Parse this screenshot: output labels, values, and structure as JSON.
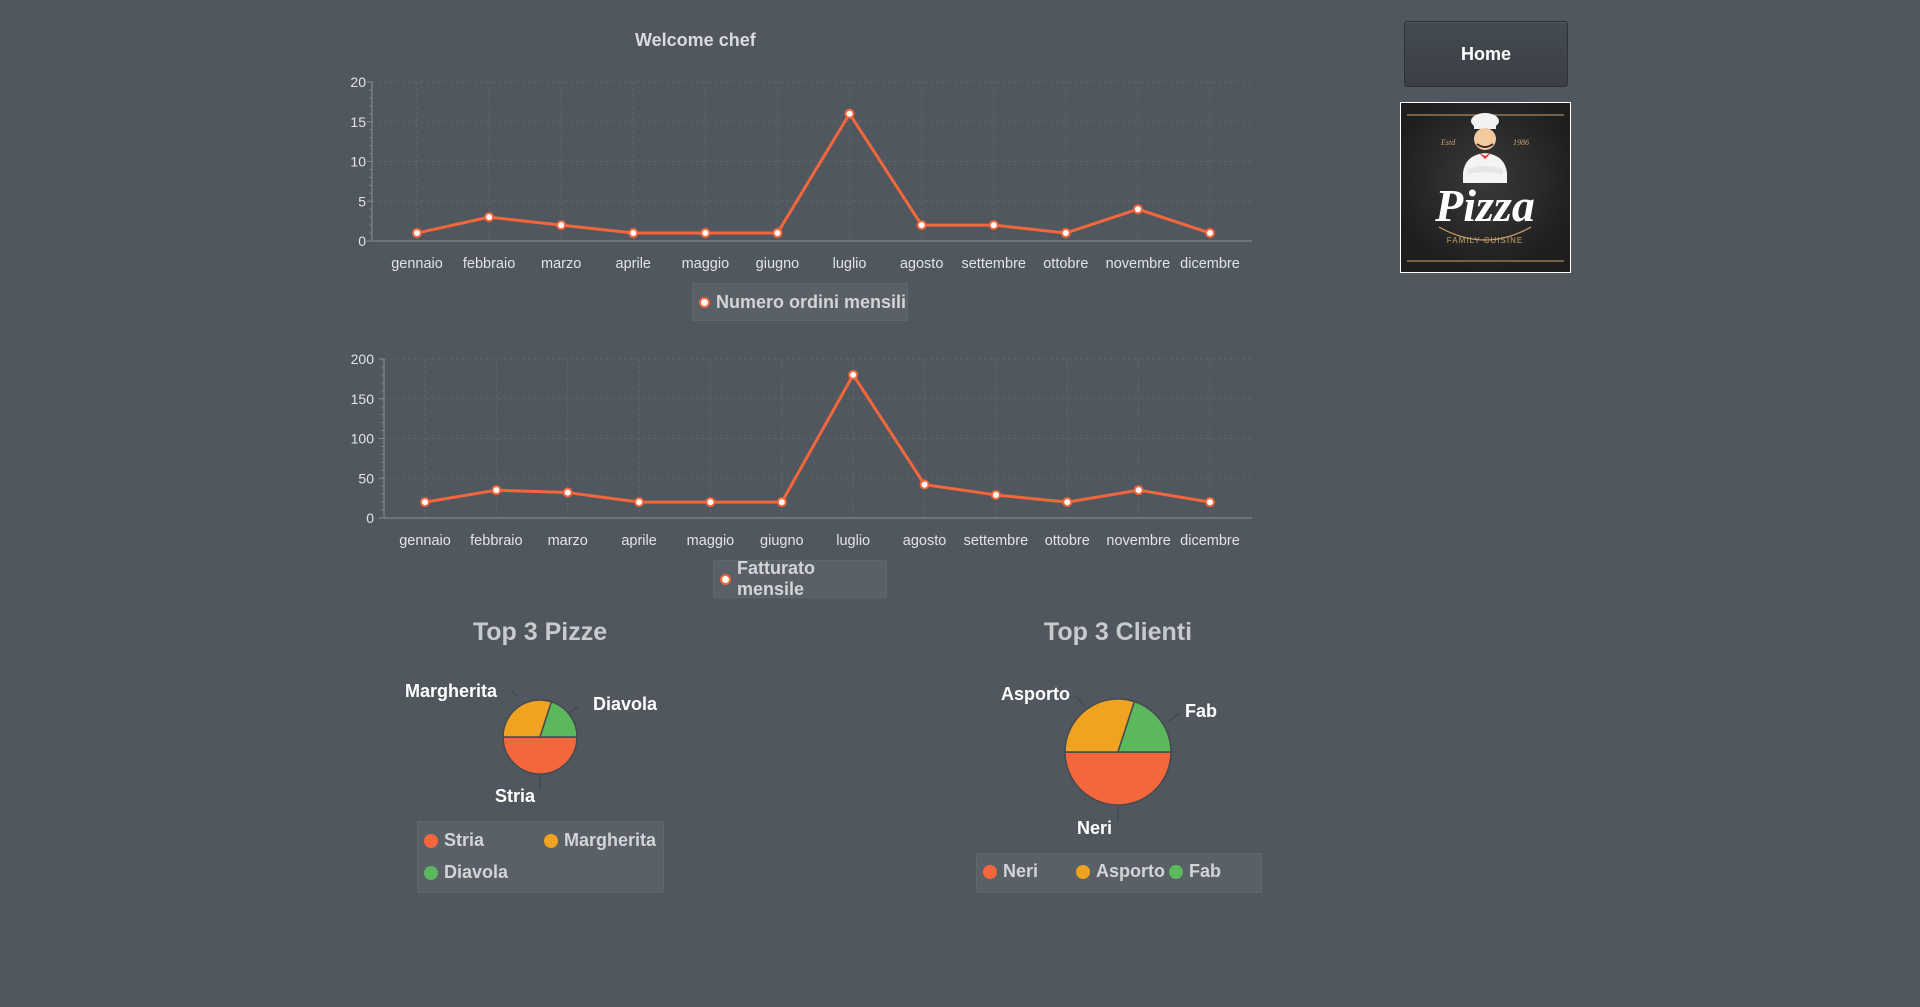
{
  "header": {
    "welcome": "Welcome chef"
  },
  "nav": {
    "home_label": "Home"
  },
  "logo": {
    "text": "Pizza",
    "estd": "Estd",
    "year": "1986",
    "tagline": "FAMILY CUISINE"
  },
  "colors": {
    "background": "#51575e",
    "series_line": "#f4663b",
    "pie_1": "#f4663b",
    "pie_2": "#f0a221",
    "pie_3": "#5cb85c"
  },
  "chart_data": [
    {
      "type": "line",
      "categories": [
        "gennaio",
        "febbraio",
        "marzo",
        "aprile",
        "maggio",
        "giugno",
        "luglio",
        "agosto",
        "settembre",
        "ottobre",
        "novembre",
        "dicembre"
      ],
      "series": [
        {
          "name": "Numero ordini mensili",
          "values": [
            1,
            3,
            2,
            1,
            1,
            1,
            16,
            2,
            2,
            1,
            4,
            1
          ]
        }
      ],
      "ylim": [
        0,
        20
      ],
      "yticks": [
        0,
        5,
        10,
        15,
        20
      ],
      "grid": true,
      "legend": "bottom"
    },
    {
      "type": "line",
      "categories": [
        "gennaio",
        "febbraio",
        "marzo",
        "aprile",
        "maggio",
        "giugno",
        "luglio",
        "agosto",
        "settembre",
        "ottobre",
        "novembre",
        "dicembre"
      ],
      "series": [
        {
          "name": "Fatturato mensile",
          "values": [
            20,
            35,
            32,
            20,
            20,
            20,
            180,
            42,
            29,
            20,
            35,
            20
          ]
        }
      ],
      "ylim": [
        0,
        200
      ],
      "yticks": [
        0,
        50,
        100,
        150,
        200
      ],
      "grid": true,
      "legend": "bottom"
    },
    {
      "type": "pie",
      "title": "Top 3 Pizze",
      "labels": [
        "Stria",
        "Margherita",
        "Diavola"
      ],
      "values": [
        50,
        30,
        20
      ],
      "legend": "bottom"
    },
    {
      "type": "pie",
      "title": "Top 3 Clienti",
      "labels": [
        "Neri",
        "Asporto",
        "Fab"
      ],
      "values": [
        50,
        30,
        20
      ],
      "legend": "bottom"
    }
  ]
}
